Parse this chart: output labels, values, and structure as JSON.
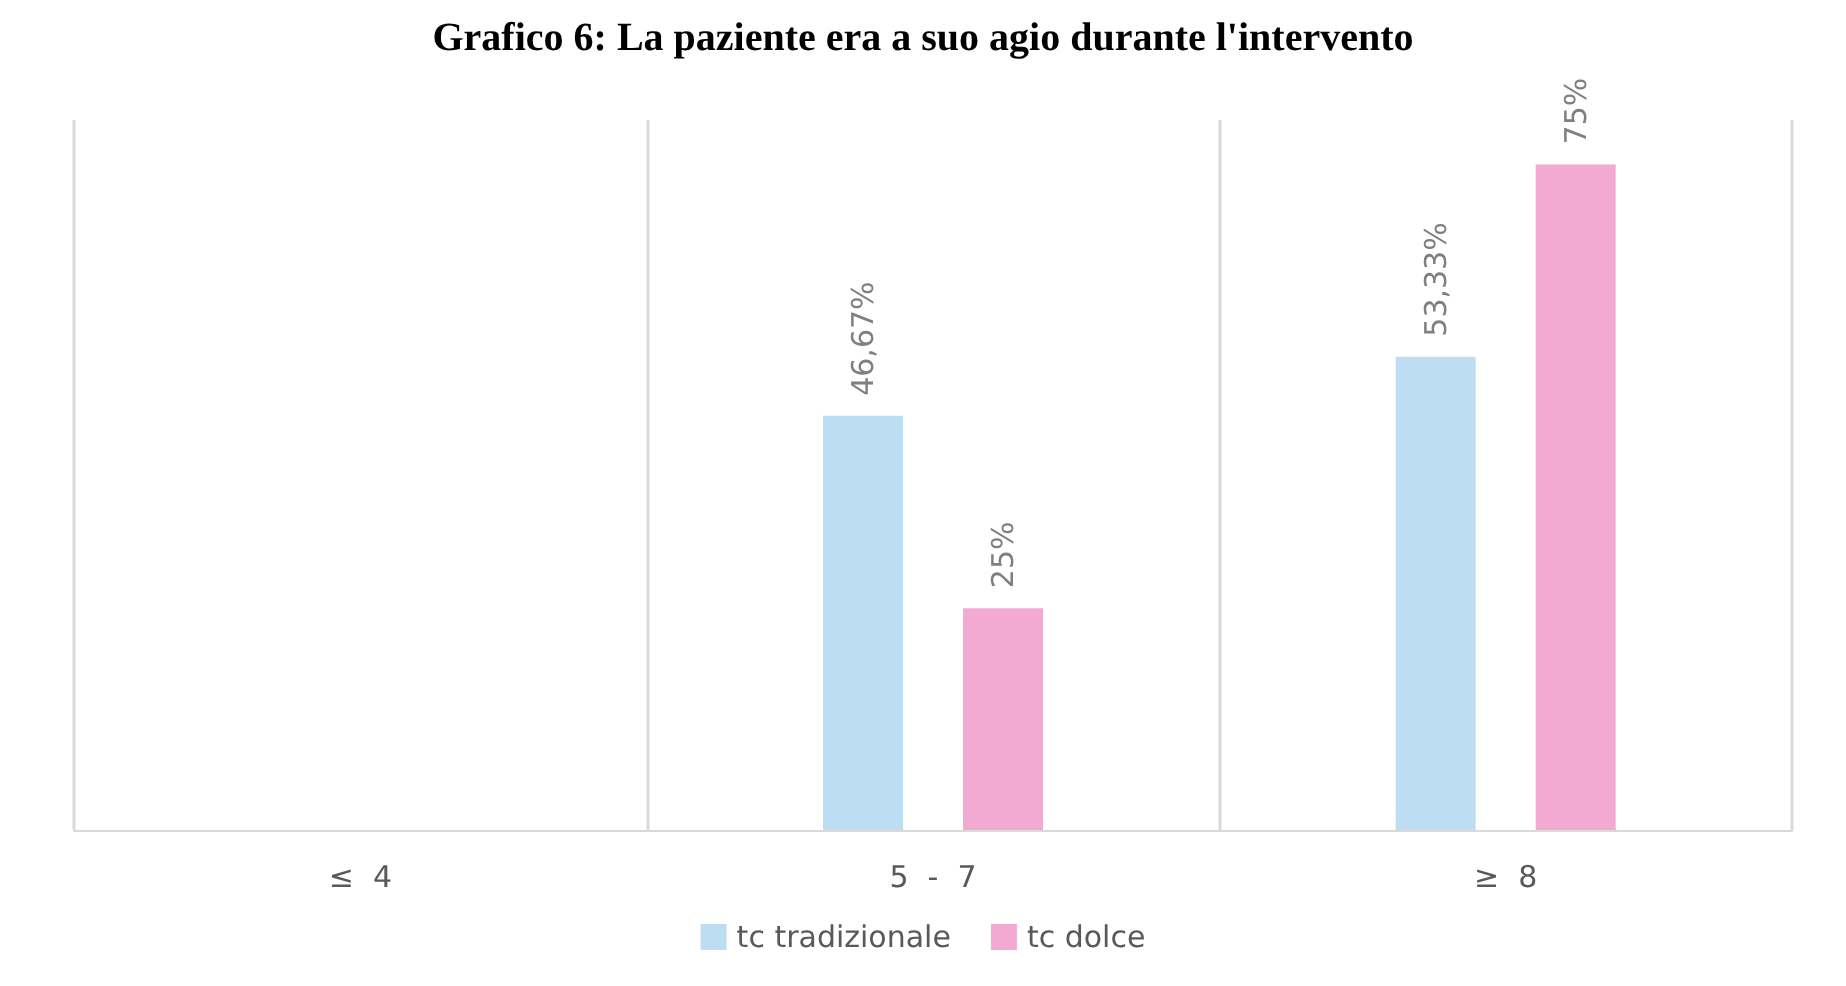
{
  "chart_data": {
    "type": "bar",
    "title": "Grafico 6: La paziente era a suo agio durante l'intervento",
    "categories": [
      "≤  4",
      "5  -  7",
      "≥  8"
    ],
    "series": [
      {
        "name": "tc tradizionale",
        "color": "#bdddf2",
        "values": [
          null,
          46.67,
          53.33
        ],
        "value_labels": [
          null,
          "46,67%",
          "53,33%"
        ]
      },
      {
        "name": "tc dolce",
        "color": "#f2aad2",
        "values": [
          null,
          25,
          75
        ],
        "value_labels": [
          null,
          "25%",
          "75%"
        ]
      }
    ],
    "tick_labels": "x",
    "grid": "x",
    "legend": "bottom"
  }
}
